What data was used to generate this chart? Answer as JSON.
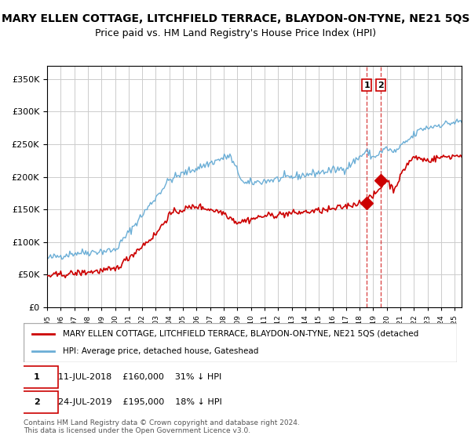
{
  "title": "MARY ELLEN COTTAGE, LITCHFIELD TERRACE, BLAYDON-ON-TYNE, NE21 5QS",
  "subtitle": "Price paid vs. HM Land Registry's House Price Index (HPI)",
  "legend_line1": "MARY ELLEN COTTAGE, LITCHFIELD TERRACE, BLAYDON-ON-TYNE, NE21 5QS (detached",
  "legend_line2": "HPI: Average price, detached house, Gateshead",
  "footer": "Contains HM Land Registry data © Crown copyright and database right 2024.\nThis data is licensed under the Open Government Licence v3.0.",
  "hpi_color": "#6baed6",
  "property_color": "#cc0000",
  "sale1_date": 2018.53,
  "sale1_price": 160000,
  "sale1_label": "1",
  "sale1_text": "11-JUL-2018    £160,000    31% ↓ HPI",
  "sale2_date": 2019.56,
  "sale2_price": 195000,
  "sale2_label": "2",
  "sale2_text": "24-JUL-2019    £195,000    18% ↓ HPI",
  "ylim": [
    0,
    370000
  ],
  "xlim_start": 1995.0,
  "xlim_end": 2025.5,
  "background_color": "#ffffff",
  "grid_color": "#cccccc",
  "title_fontsize": 10,
  "subtitle_fontsize": 9
}
